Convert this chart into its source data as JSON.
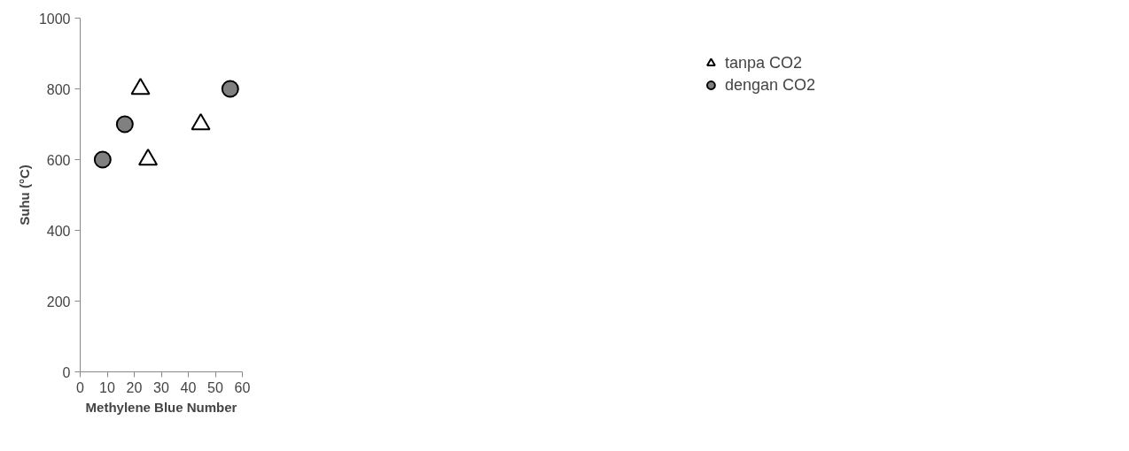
{
  "chart_data": {
    "type": "scatter",
    "xlabel": "Methylene Blue Number",
    "ylabel": "Suhu (°C)",
    "xlim": [
      0,
      60
    ],
    "xticks": [
      0,
      10,
      20,
      30,
      40,
      50,
      60
    ],
    "ylim": [
      0,
      1000
    ],
    "yticks": [
      0,
      200,
      400,
      600,
      800,
      1000
    ],
    "grid": false,
    "legend": "right",
    "series": [
      {
        "name": "tanpa CO2",
        "color": "#000000",
        "marker": "triangle",
        "x": [
          22.3,
          25.1,
          44.6
        ],
        "values": [
          800,
          600,
          700
        ]
      },
      {
        "name": "dengan CO2",
        "color": "#808080",
        "marker": "circle",
        "x": [
          8.3,
          16.5,
          55.5
        ],
        "values": [
          600,
          700,
          800
        ]
      }
    ]
  }
}
